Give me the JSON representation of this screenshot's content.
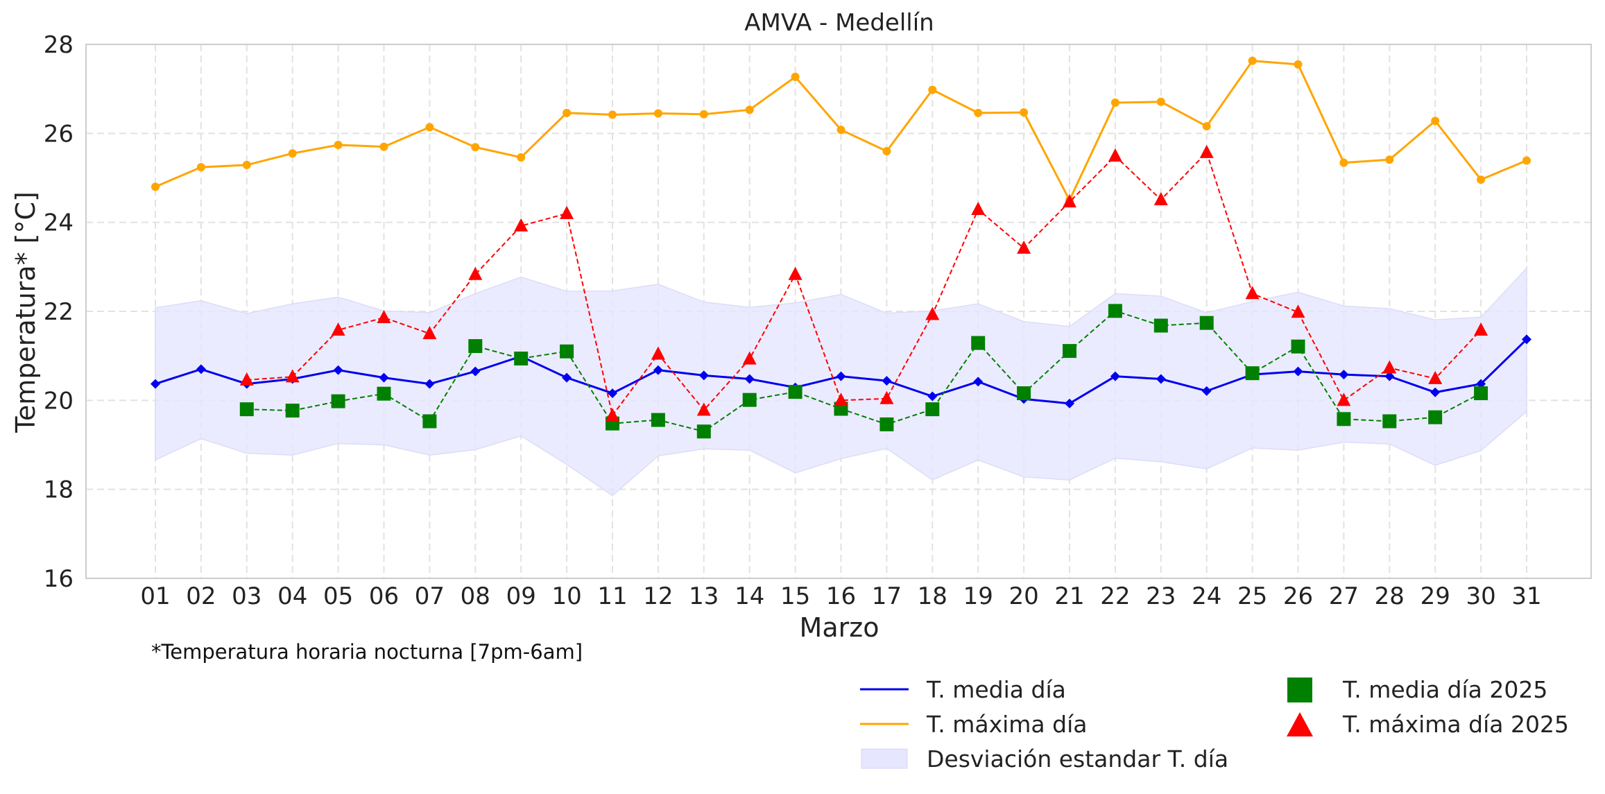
{
  "chart_data": {
    "type": "line",
    "title": "AMVA - Medellín",
    "xlabel": "Marzo",
    "ylabel": "Temperatura* [°C]",
    "note": "*Temperatura horaria nocturna [7pm-6am]",
    "ylim": [
      16,
      28
    ],
    "yticks": [
      16,
      18,
      20,
      22,
      24,
      26,
      28
    ],
    "grid": true,
    "legend_position": "bottom-right",
    "categories": [
      "01",
      "02",
      "03",
      "04",
      "05",
      "06",
      "07",
      "08",
      "09",
      "10",
      "11",
      "12",
      "13",
      "14",
      "15",
      "16",
      "17",
      "18",
      "19",
      "20",
      "21",
      "22",
      "23",
      "24",
      "25",
      "26",
      "27",
      "28",
      "29",
      "30",
      "31"
    ],
    "series": [
      {
        "name": "T. media día",
        "color": "#0000ee",
        "style": "solid",
        "marker": "diamond",
        "values": [
          20.37,
          20.7,
          20.37,
          20.48,
          20.68,
          20.51,
          20.37,
          20.65,
          20.99,
          20.51,
          20.16,
          20.68,
          20.56,
          20.48,
          20.29,
          20.54,
          20.44,
          20.09,
          20.42,
          20.03,
          19.93,
          20.54,
          20.48,
          20.21,
          20.58,
          20.65,
          20.58,
          20.54,
          20.18,
          20.37,
          21.37
        ]
      },
      {
        "name": "T. máxima día",
        "color": "#ffa500",
        "style": "solid",
        "marker": "circle",
        "values": [
          24.8,
          25.24,
          25.29,
          25.55,
          25.74,
          25.7,
          26.14,
          25.69,
          25.46,
          26.46,
          26.42,
          26.45,
          26.43,
          26.53,
          27.27,
          26.08,
          25.6,
          26.98,
          26.46,
          26.47,
          24.5,
          26.69,
          26.71,
          26.16,
          27.63,
          27.55,
          25.34,
          25.41,
          26.28,
          24.96,
          25.39
        ]
      },
      {
        "name": "Desviación estandar T. día",
        "type": "band",
        "color": "#e6e6ff",
        "upper": [
          22.08,
          22.24,
          21.95,
          22.17,
          22.32,
          22.01,
          21.97,
          22.4,
          22.77,
          22.45,
          22.46,
          22.61,
          22.21,
          22.09,
          22.19,
          22.38,
          21.96,
          22.01,
          22.17,
          21.77,
          21.66,
          22.4,
          22.34,
          21.97,
          22.22,
          22.43,
          22.12,
          22.06,
          21.81,
          21.87,
          22.97
        ],
        "lower": [
          18.66,
          19.14,
          18.81,
          18.77,
          19.03,
          19.0,
          18.77,
          18.89,
          19.2,
          18.56,
          17.86,
          18.75,
          18.91,
          18.88,
          18.37,
          18.69,
          18.92,
          18.21,
          18.66,
          18.28,
          18.21,
          18.7,
          18.62,
          18.46,
          18.93,
          18.88,
          19.06,
          19.02,
          18.54,
          18.87,
          19.75
        ]
      },
      {
        "name": "T. media día 2025",
        "color": "#008000",
        "style": "dashed",
        "marker": "square",
        "values": [
          null,
          null,
          19.8,
          19.77,
          19.98,
          20.15,
          19.53,
          21.22,
          20.94,
          21.1,
          19.48,
          19.56,
          19.3,
          20.01,
          20.19,
          19.81,
          19.46,
          19.8,
          21.29,
          20.16,
          21.11,
          22.01,
          21.68,
          21.74,
          20.61,
          21.21,
          19.58,
          19.53,
          19.62,
          20.16,
          null
        ]
      },
      {
        "name": "T. máxima día 2025",
        "color": "#ff0000",
        "style": "dashed",
        "marker": "triangle",
        "values": [
          null,
          null,
          20.46,
          20.53,
          21.58,
          21.86,
          21.5,
          22.83,
          23.92,
          24.2,
          19.66,
          21.04,
          19.78,
          20.93,
          22.83,
          20.0,
          20.04,
          21.93,
          24.29,
          23.42,
          24.46,
          25.49,
          24.51,
          25.57,
          22.4,
          21.98,
          20.0,
          20.73,
          20.49,
          21.58,
          null
        ]
      }
    ]
  }
}
